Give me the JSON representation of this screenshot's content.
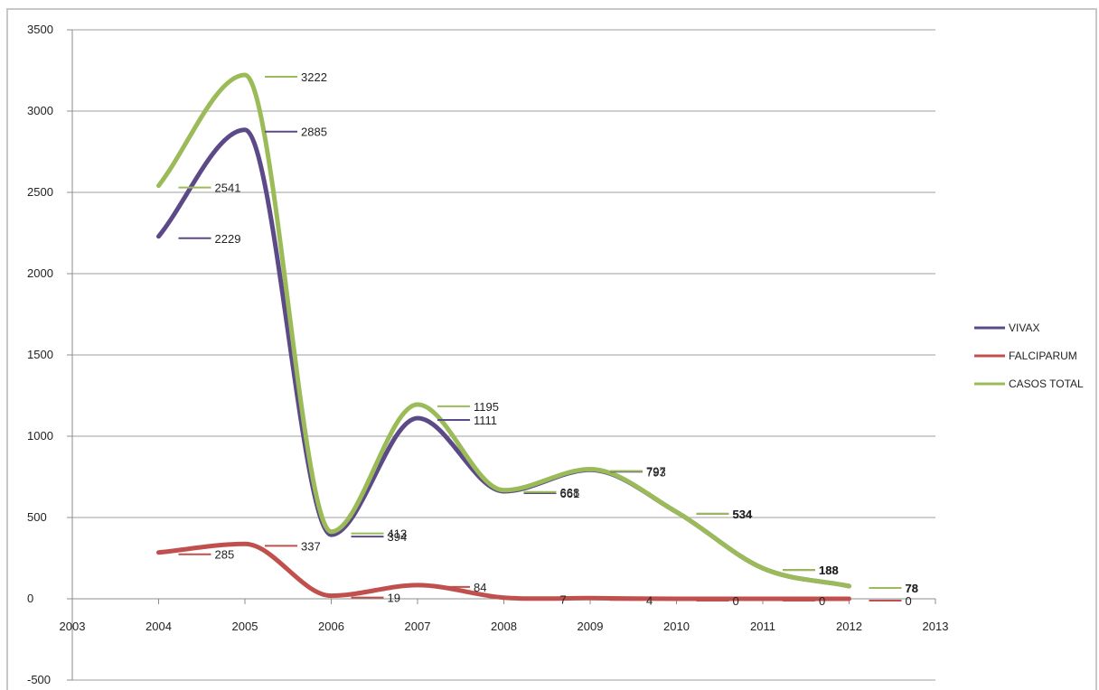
{
  "chart_data": {
    "type": "line",
    "title": "",
    "xlabel": "",
    "ylabel": "",
    "xlim": [
      2003,
      2013
    ],
    "ylim": [
      -500,
      3500
    ],
    "x_ticks": [
      "2003",
      "2004",
      "2005",
      "2006",
      "2007",
      "2008",
      "2009",
      "2010",
      "2011",
      "2012",
      "2013"
    ],
    "y_ticks": [
      "-500",
      "0",
      "500",
      "1000",
      "1500",
      "2000",
      "2500",
      "3000",
      "3500"
    ],
    "grid": "horizontal",
    "legend_position": "right",
    "x": [
      2004,
      2005,
      2006,
      2007,
      2008,
      2009,
      2010,
      2011,
      2012
    ],
    "series": [
      {
        "name": "VIVAX",
        "color": "#5b4a87",
        "values": [
          2229,
          2885,
          394,
          1111,
          661,
          793,
          534,
          188,
          78
        ],
        "labels": [
          "2229",
          "2885",
          "394",
          "1111",
          "661",
          "793",
          "534",
          "188",
          "78"
        ]
      },
      {
        "name": "FALCIPARUM",
        "color": "#c0504d",
        "values": [
          285,
          337,
          19,
          84,
          7,
          4,
          0,
          0,
          0
        ],
        "labels": [
          "285",
          "337",
          "19",
          "84",
          "7",
          "4",
          "0",
          "0",
          "0"
        ]
      },
      {
        "name": "CASOS TOTAL",
        "color": "#9bbb59",
        "values": [
          2541,
          3222,
          413,
          1195,
          668,
          797,
          534,
          188,
          78
        ],
        "labels": [
          "2541",
          "3222",
          "413",
          "1195",
          "668",
          "797",
          "534",
          "188",
          "78"
        ]
      }
    ]
  }
}
